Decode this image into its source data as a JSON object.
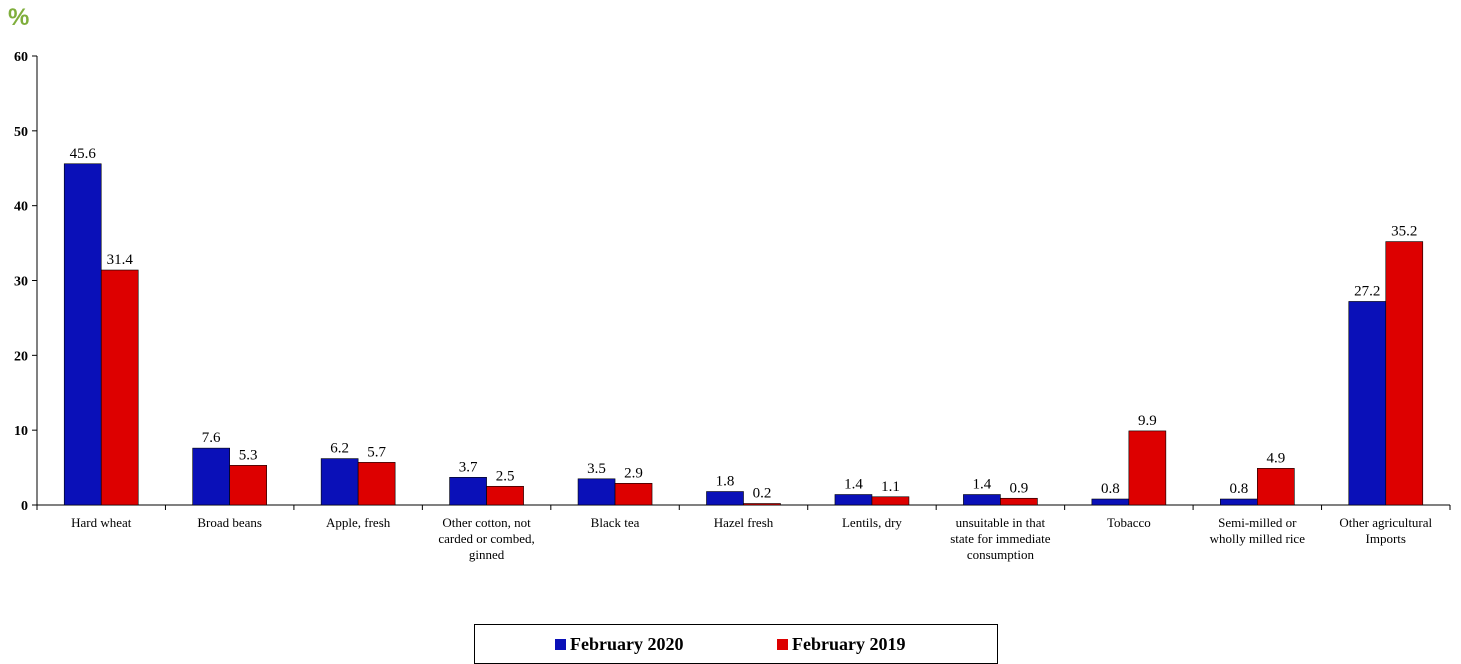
{
  "chart_data": {
    "type": "bar",
    "unit_label": "%",
    "categories": [
      "Hard wheat",
      "Broad beans",
      "Apple, fresh",
      "Other cotton, not carded or combed, ginned",
      "Black tea",
      "Hazel  fresh",
      "Lentils, dry",
      "unsuitable in that state for immediate consumption",
      "Tobacco",
      "Semi-milled or wholly milled rice",
      "Other agricultural Imports"
    ],
    "category_lines": [
      [
        "Hard wheat"
      ],
      [
        "Broad beans"
      ],
      [
        "Apple, fresh"
      ],
      [
        "Other cotton, not",
        "carded or combed,",
        "ginned"
      ],
      [
        "Black tea"
      ],
      [
        "Hazel  fresh"
      ],
      [
        "Lentils, dry"
      ],
      [
        "unsuitable in that",
        "state for immediate",
        "consumption"
      ],
      [
        "Tobacco"
      ],
      [
        "Semi-milled or",
        "wholly milled rice"
      ],
      [
        "Other agricultural",
        "Imports"
      ]
    ],
    "series": [
      {
        "name": "February 2020",
        "color": "#0a10b8",
        "values": [
          45.6,
          7.6,
          6.2,
          3.7,
          3.5,
          1.8,
          1.4,
          1.4,
          0.8,
          0.8,
          27.2
        ]
      },
      {
        "name": "February  2019",
        "color": "#dd0000",
        "values": [
          31.4,
          5.3,
          5.7,
          2.5,
          2.9,
          0.2,
          1.1,
          0.9,
          9.9,
          4.9,
          35.2
        ]
      }
    ],
    "ylim": [
      0,
      60
    ],
    "yticks": [
      0,
      10,
      20,
      30,
      40,
      50,
      60
    ],
    "grid": false,
    "legend_position": "bottom"
  }
}
